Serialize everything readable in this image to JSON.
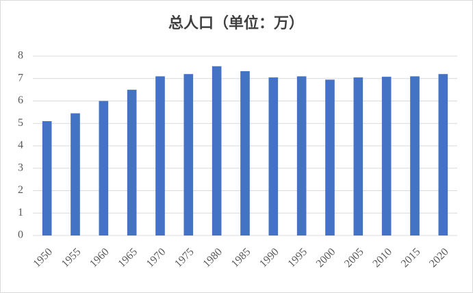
{
  "chart_data": {
    "type": "bar",
    "title": "总人口（单位：万）",
    "categories": [
      "1950",
      "1955",
      "1960",
      "1965",
      "1970",
      "1975",
      "1980",
      "1985",
      "1990",
      "1995",
      "2000",
      "2005",
      "2010",
      "2015",
      "2020"
    ],
    "values": [
      5.1,
      5.45,
      6.0,
      6.5,
      7.1,
      7.2,
      7.55,
      7.33,
      7.05,
      7.1,
      6.95,
      7.05,
      7.08,
      7.1,
      7.2
    ],
    "color": "#4472c4",
    "ylim": [
      0,
      8
    ],
    "yticks": [
      0,
      1,
      2,
      3,
      4,
      5,
      6,
      7,
      8
    ],
    "grid": true
  }
}
